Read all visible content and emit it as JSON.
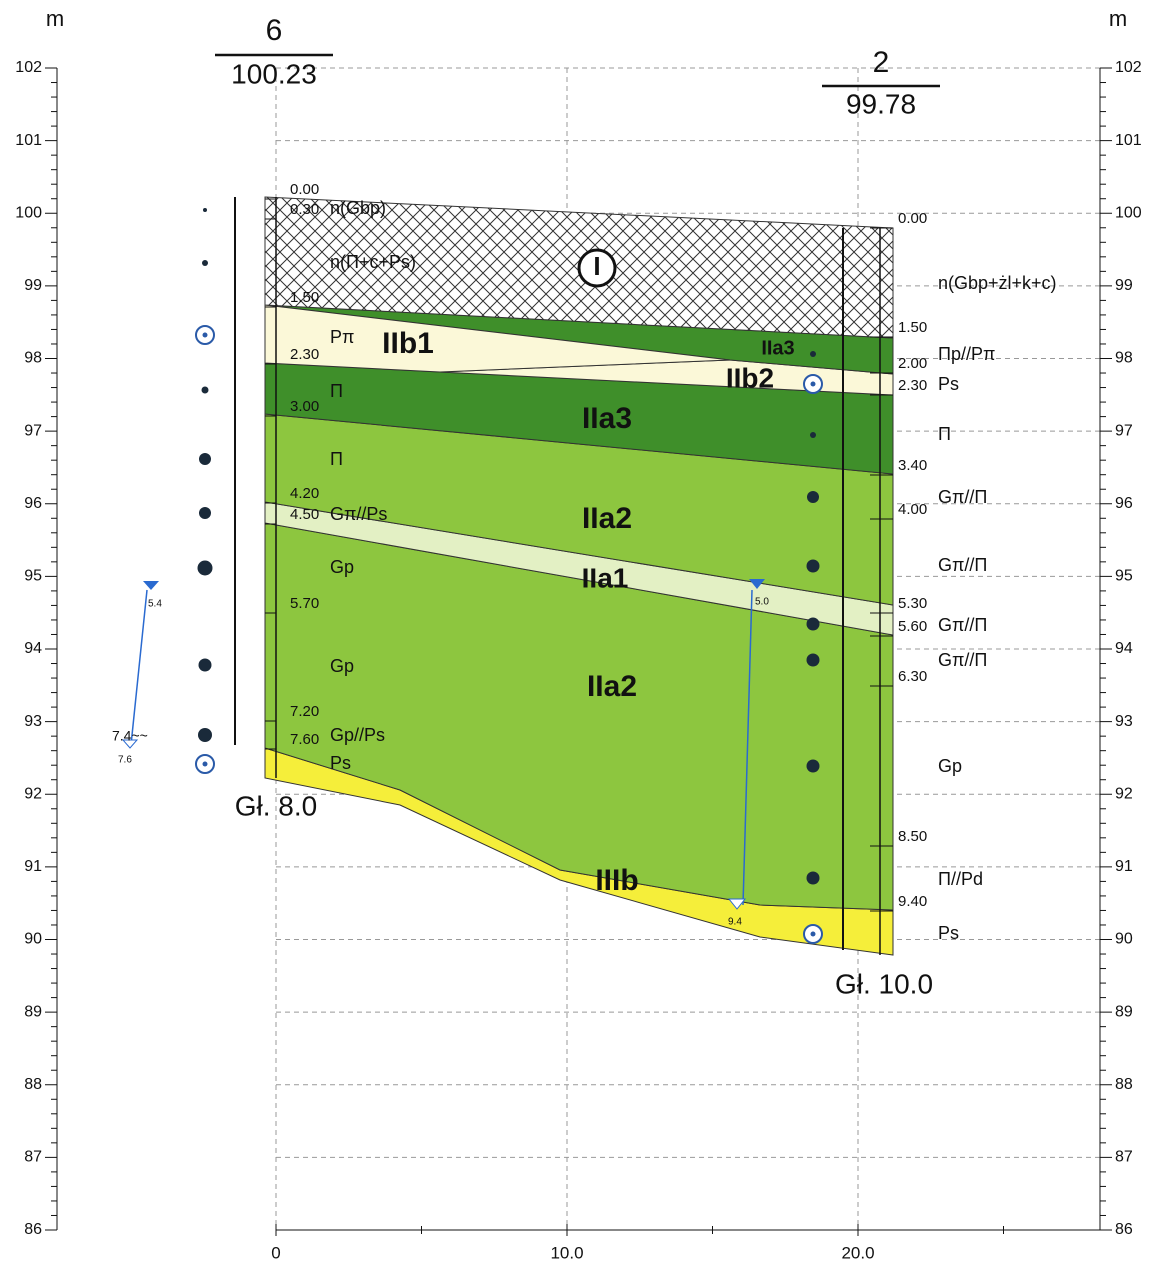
{
  "axis": {
    "unit_left": "m",
    "unit_right": "m",
    "elevation_ticks": [
      102,
      101,
      100,
      99,
      98,
      97,
      96,
      95,
      94,
      93,
      92,
      91,
      90,
      89,
      88,
      87,
      86
    ],
    "distance_ticks": [
      "0",
      "10.0",
      "20.0"
    ]
  },
  "boreholes": [
    {
      "number": "6",
      "ground_elevation": "100.23",
      "depth_note": "Gł. 8.0",
      "depths": [
        "0.00",
        "0.30",
        "1.50",
        "2.30",
        "3.00",
        "4.20",
        "4.50",
        "5.70",
        "7.20",
        "7.60"
      ],
      "soils": [
        "n(Gbp)",
        "n(Π+c+Ps)",
        "Pπ",
        "Π",
        "Π",
        "Gπ//Ps",
        "Gp",
        "Gp",
        "Gp//Ps",
        "Ps"
      ]
    },
    {
      "number": "2",
      "ground_elevation": "99.78",
      "depth_note": "Gł. 10.0",
      "depths": [
        "0.00",
        "1.50",
        "2.00",
        "2.30",
        "3.40",
        "4.00",
        "5.30",
        "5.60",
        "6.30",
        "8.50",
        "9.40"
      ],
      "soils": [
        "n(Gbp+żl+k+c)",
        "Πp//Pπ",
        "Ps",
        "Π",
        "Gπ//Π",
        "Gπ//Π",
        "Gπ//Π",
        "Gπ//Π",
        "Gp",
        "Π//Pd",
        "Ps"
      ]
    }
  ],
  "units": [
    "I",
    "IIb1",
    "IIa3",
    "IIb2",
    "IIa3",
    "IIa2",
    "IIa1",
    "IIa2",
    "IIIb"
  ],
  "water_levels": [
    [
      "5.4",
      "7.4~~",
      "7.6"
    ],
    [
      "5.0",
      "9.4"
    ]
  ]
}
